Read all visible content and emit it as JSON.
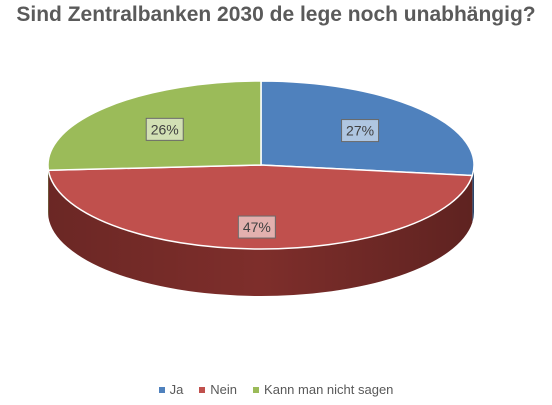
{
  "chart_data": {
    "type": "pie",
    "title": "Sind Zentralbanken 2030 de lege noch unabhängig?",
    "categories": [
      "Ja",
      "Nein",
      "Kann man nicht sagen"
    ],
    "values": [
      27,
      47,
      26
    ],
    "value_labels": [
      "27%",
      "47%",
      "26%"
    ],
    "colors": [
      "#4f81bd",
      "#c0504d",
      "#9bbb59"
    ],
    "side_colors": [
      "#2f4f79",
      "#7e2e2b",
      "#637a35"
    ],
    "style": "3d-elliptical",
    "legend_position": "bottom"
  }
}
